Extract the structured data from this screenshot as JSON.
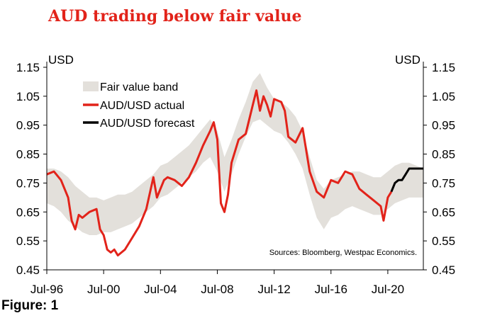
{
  "page": {
    "title": "AUD trading below fair value",
    "figure_label": "Figure: 1"
  },
  "colors": {
    "title": "#e2231a",
    "actual": "#e2231a",
    "forecast": "#000000",
    "band": "#e3e0db"
  },
  "chart_data": {
    "type": "line",
    "title": "AUD trading below fair value",
    "y_unit_left": "USD",
    "y_unit_right": "USD",
    "ylim": [
      0.45,
      1.15
    ],
    "y_ticks": [
      1.15,
      1.05,
      0.95,
      0.85,
      0.75,
      0.65,
      0.55,
      0.45
    ],
    "y_tick_labels": [
      "1.15",
      "1.05",
      "0.95",
      "0.85",
      "0.75",
      "0.65",
      "0.55",
      "0.45"
    ],
    "xlim": [
      1996.5,
      2023.0
    ],
    "x_ticks": [
      1996.5,
      2000.5,
      2004.5,
      2008.5,
      2012.5,
      2016.5,
      2020.5
    ],
    "x_tick_labels": [
      "Jul-96",
      "Jul-00",
      "Jul-04",
      "Jul-08",
      "Jul-12",
      "Jul-16",
      "Jul-20"
    ],
    "legend": [
      {
        "label": "Fair value band",
        "kind": "band"
      },
      {
        "label": "AUD/USD actual",
        "kind": "actual"
      },
      {
        "label": "AUD/USD forecast",
        "kind": "forecast"
      }
    ],
    "source_note": "Sources: Bloomberg, Westpac Economics.",
    "fair_value_band": {
      "x": [
        1996.5,
        1997.0,
        1997.5,
        1998.0,
        1998.5,
        1999.0,
        1999.5,
        2000.0,
        2000.5,
        2001.0,
        2001.5,
        2002.0,
        2002.5,
        2003.0,
        2003.5,
        2004.0,
        2004.5,
        2005.0,
        2005.5,
        2006.0,
        2006.5,
        2007.0,
        2007.5,
        2008.0,
        2008.5,
        2009.0,
        2009.5,
        2010.0,
        2010.5,
        2011.0,
        2011.5,
        2012.0,
        2012.5,
        2013.0,
        2013.5,
        2014.0,
        2014.5,
        2015.0,
        2015.5,
        2016.0,
        2016.5,
        2017.0,
        2017.5,
        2018.0,
        2018.5,
        2019.0,
        2019.5,
        2020.0,
        2020.5,
        2021.0,
        2021.5,
        2022.0,
        2022.5,
        2023.0
      ],
      "lower": [
        0.68,
        0.67,
        0.65,
        0.62,
        0.6,
        0.58,
        0.57,
        0.57,
        0.58,
        0.58,
        0.59,
        0.6,
        0.61,
        0.63,
        0.65,
        0.67,
        0.7,
        0.71,
        0.73,
        0.75,
        0.77,
        0.79,
        0.82,
        0.84,
        0.79,
        0.72,
        0.78,
        0.85,
        0.91,
        0.96,
        0.97,
        0.95,
        0.93,
        0.92,
        0.89,
        0.85,
        0.8,
        0.71,
        0.63,
        0.59,
        0.63,
        0.64,
        0.66,
        0.67,
        0.66,
        0.65,
        0.64,
        0.64,
        0.66,
        0.68,
        0.69,
        0.7,
        0.7,
        0.7
      ],
      "upper": [
        0.8,
        0.8,
        0.79,
        0.77,
        0.74,
        0.72,
        0.7,
        0.7,
        0.69,
        0.7,
        0.71,
        0.71,
        0.72,
        0.74,
        0.76,
        0.78,
        0.81,
        0.82,
        0.84,
        0.86,
        0.88,
        0.91,
        0.94,
        0.97,
        0.93,
        0.84,
        0.9,
        0.97,
        1.03,
        1.1,
        1.13,
        1.08,
        1.04,
        1.03,
        1.01,
        0.98,
        0.93,
        0.84,
        0.76,
        0.73,
        0.76,
        0.77,
        0.78,
        0.79,
        0.79,
        0.78,
        0.77,
        0.77,
        0.79,
        0.81,
        0.82,
        0.82,
        0.81,
        0.8
      ]
    },
    "series": [
      {
        "name": "AUD/USD actual",
        "x": [
          1996.5,
          1997.0,
          1997.5,
          1998.0,
          1998.25,
          1998.5,
          1998.75,
          1999.0,
          1999.5,
          2000.0,
          2000.25,
          2000.5,
          2000.75,
          2001.0,
          2001.25,
          2001.5,
          2002.0,
          2002.5,
          2003.0,
          2003.5,
          2004.0,
          2004.25,
          2004.5,
          2004.75,
          2005.0,
          2005.5,
          2006.0,
          2006.5,
          2007.0,
          2007.5,
          2008.0,
          2008.25,
          2008.5,
          2008.75,
          2009.0,
          2009.25,
          2009.5,
          2010.0,
          2010.5,
          2011.0,
          2011.25,
          2011.5,
          2011.75,
          2012.0,
          2012.25,
          2012.5,
          2013.0,
          2013.25,
          2013.5,
          2014.0,
          2014.5,
          2015.0,
          2015.5,
          2016.0,
          2016.5,
          2017.0,
          2017.5,
          2018.0,
          2018.5,
          2019.0,
          2019.5,
          2020.0,
          2020.2,
          2020.5,
          2020.75
        ],
        "values": [
          0.78,
          0.79,
          0.76,
          0.7,
          0.62,
          0.59,
          0.64,
          0.63,
          0.65,
          0.66,
          0.59,
          0.57,
          0.52,
          0.51,
          0.52,
          0.5,
          0.52,
          0.56,
          0.6,
          0.66,
          0.77,
          0.7,
          0.73,
          0.76,
          0.77,
          0.76,
          0.74,
          0.77,
          0.82,
          0.88,
          0.93,
          0.96,
          0.9,
          0.68,
          0.65,
          0.71,
          0.82,
          0.9,
          0.92,
          1.02,
          1.07,
          1.0,
          1.05,
          1.02,
          0.98,
          1.04,
          1.03,
          1.0,
          0.91,
          0.89,
          0.94,
          0.79,
          0.72,
          0.7,
          0.76,
          0.75,
          0.79,
          0.78,
          0.73,
          0.71,
          0.69,
          0.67,
          0.62,
          0.7,
          0.72
        ]
      },
      {
        "name": "AUD/USD forecast",
        "x": [
          2020.75,
          2021.0,
          2021.25,
          2021.5,
          2021.75,
          2022.0,
          2022.25,
          2022.5,
          2023.0
        ],
        "values": [
          0.72,
          0.75,
          0.76,
          0.76,
          0.78,
          0.8,
          0.8,
          0.8,
          0.8
        ]
      }
    ]
  }
}
